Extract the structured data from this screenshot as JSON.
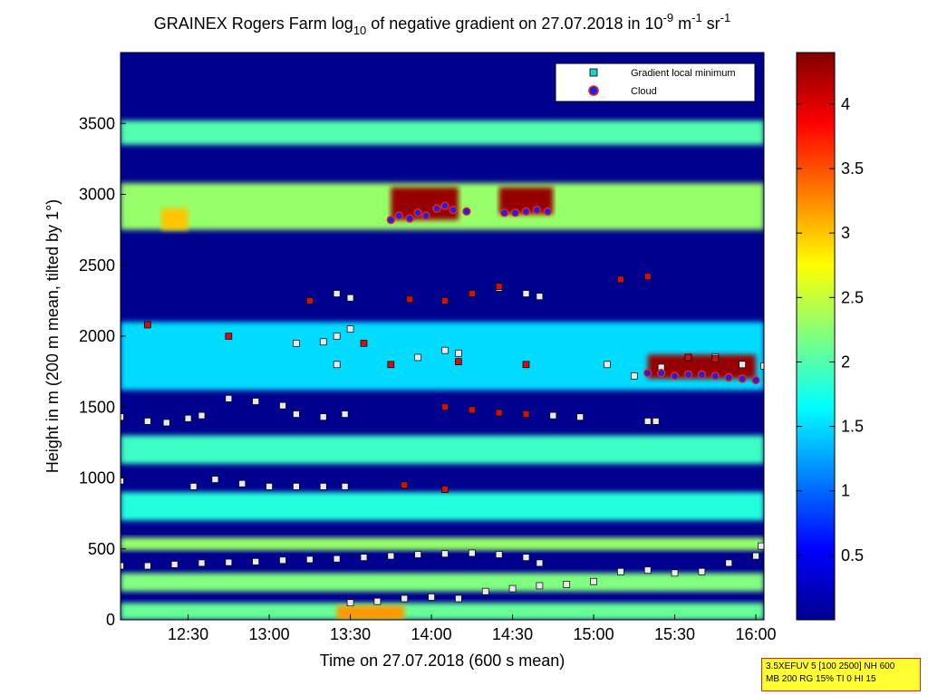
{
  "chart_data": {
    "type": "heatmap",
    "title": {
      "prefix": "GRAINEX Rogers Farm log",
      "prefix_sub": "10",
      "middle": " of negative gradient on 27.07.2018 in 10",
      "exp1": "-9",
      "m_unit": " m",
      "exp2": "-1",
      "sr_unit": " sr",
      "exp3": "-1"
    },
    "xlabel": "Time on 27.07.2018 (600 s mean)",
    "ylabel": "Height in m (200 m mean, tilted by 1°)",
    "xlim": [
      "12:05",
      "16:03"
    ],
    "ylim": [
      0,
      4000
    ],
    "x_ticks": [
      {
        "label": "12:30",
        "minutes": 750
      },
      {
        "label": "13:00",
        "minutes": 780
      },
      {
        "label": "13:30",
        "minutes": 810
      },
      {
        "label": "14:00",
        "minutes": 840
      },
      {
        "label": "14:30",
        "minutes": 870
      },
      {
        "label": "15:00",
        "minutes": 900
      },
      {
        "label": "15:30",
        "minutes": 930
      },
      {
        "label": "16:00",
        "minutes": 960
      }
    ],
    "y_ticks": [
      0,
      500,
      1000,
      1500,
      2000,
      2500,
      3000,
      3500
    ],
    "colorbar": {
      "colormap": "jet",
      "range": [
        0,
        4.4
      ],
      "ticks": [
        "0.5",
        "1",
        "1.5",
        "2",
        "2.5",
        "3",
        "3.5",
        "4"
      ]
    },
    "legend": {
      "position": "top-right",
      "entries": [
        {
          "label": "Gradient local minimum",
          "marker": "square",
          "color": "#22cccc"
        },
        {
          "label": "Cloud",
          "marker": "circle",
          "color": "#2222dd",
          "edge": "#ee2222"
        }
      ]
    },
    "layers": [
      {
        "x": [
          "12:05",
          "16:03"
        ],
        "h": [
          3350,
          3520
        ],
        "v": 2.0
      },
      {
        "x": [
          "12:05",
          "16:03"
        ],
        "h": [
          2750,
          3080
        ],
        "v": 2.3
      },
      {
        "x": [
          "12:05",
          "16:03"
        ],
        "h": [
          1620,
          2100
        ],
        "v": 1.5
      },
      {
        "x": [
          "12:05",
          "16:03"
        ],
        "h": [
          1100,
          1300
        ],
        "v": 1.9
      },
      {
        "x": [
          "12:05",
          "16:03"
        ],
        "h": [
          700,
          900
        ],
        "v": 1.8
      },
      {
        "x": [
          "12:05",
          "16:03"
        ],
        "h": [
          490,
          580
        ],
        "v": 2.3
      },
      {
        "x": [
          "12:05",
          "16:03"
        ],
        "h": [
          200,
          330
        ],
        "v": 2.2
      },
      {
        "x": [
          "12:05",
          "16:03"
        ],
        "h": [
          0,
          120
        ],
        "v": 2.1
      },
      {
        "x": [
          "12:20",
          "12:30"
        ],
        "h": [
          2750,
          2900
        ],
        "v": 3.0
      },
      {
        "x": [
          "13:25",
          "13:50"
        ],
        "h": [
          0,
          100
        ],
        "v": 3.2
      },
      {
        "x": [
          "13:45",
          "14:10"
        ],
        "h": [
          2820,
          3050
        ],
        "v": 4.3
      },
      {
        "x": [
          "14:25",
          "14:45"
        ],
        "h": [
          2860,
          3050
        ],
        "v": 4.3
      },
      {
        "x": [
          "15:20",
          "16:00"
        ],
        "h": [
          1700,
          1870
        ],
        "v": 4.3
      }
    ],
    "series": [
      {
        "name": "Gradient local minimum",
        "marker": "square",
        "points": [
          [
            "12:05",
            380
          ],
          [
            "12:15",
            380
          ],
          [
            "12:25",
            390
          ],
          [
            "12:35",
            400
          ],
          [
            "12:45",
            405
          ],
          [
            "12:55",
            410
          ],
          [
            "13:05",
            420
          ],
          [
            "13:15",
            425
          ],
          [
            "13:25",
            430
          ],
          [
            "13:35",
            440
          ],
          [
            "13:45",
            450
          ],
          [
            "13:55",
            460
          ],
          [
            "14:05",
            465
          ],
          [
            "14:15",
            470
          ],
          [
            "14:25",
            460
          ],
          [
            "14:35",
            440
          ],
          [
            "14:40",
            400
          ],
          [
            "13:30",
            120
          ],
          [
            "13:40",
            130
          ],
          [
            "13:50",
            150
          ],
          [
            "14:00",
            160
          ],
          [
            "14:10",
            150
          ],
          [
            "14:20",
            200
          ],
          [
            "14:30",
            220
          ],
          [
            "14:40",
            240
          ],
          [
            "14:50",
            250
          ],
          [
            "15:00",
            270
          ],
          [
            "15:10",
            340
          ],
          [
            "15:20",
            350
          ],
          [
            "15:30",
            330
          ],
          [
            "15:40",
            340
          ],
          [
            "15:50",
            400
          ],
          [
            "16:00",
            450
          ],
          [
            "16:02",
            520
          ],
          [
            "12:05",
            1430
          ],
          [
            "12:15",
            1400
          ],
          [
            "12:22",
            1390
          ],
          [
            "12:30",
            1420
          ],
          [
            "12:35",
            1440
          ],
          [
            "12:45",
            1560
          ],
          [
            "12:55",
            1540
          ],
          [
            "13:05",
            1510
          ],
          [
            "13:10",
            1450
          ],
          [
            "13:20",
            1430
          ],
          [
            "13:28",
            1450
          ],
          [
            "12:05",
            980
          ],
          [
            "12:32",
            940
          ],
          [
            "12:40",
            990
          ],
          [
            "12:50",
            960
          ],
          [
            "13:00",
            940
          ],
          [
            "13:10",
            940
          ],
          [
            "13:20",
            940
          ],
          [
            "13:28",
            940
          ],
          [
            "13:10",
            1950
          ],
          [
            "13:20",
            1960
          ],
          [
            "13:25",
            2000
          ],
          [
            "13:30",
            2050
          ],
          [
            "13:25",
            1800
          ],
          [
            "13:25",
            2300
          ],
          [
            "13:30",
            2270
          ],
          [
            "14:25",
            2340
          ],
          [
            "14:35",
            2300
          ],
          [
            "14:40",
            2280
          ],
          [
            "14:45",
            1440
          ],
          [
            "14:55",
            1430
          ],
          [
            "15:05",
            1800
          ],
          [
            "15:15",
            1720
          ],
          [
            "15:25",
            1780
          ],
          [
            "15:35",
            1850
          ],
          [
            "15:45",
            1850
          ],
          [
            "15:55",
            1800
          ],
          [
            "16:03",
            1790
          ],
          [
            "15:20",
            1400
          ],
          [
            "15:23",
            1400
          ],
          [
            "14:05",
            1900
          ],
          [
            "14:10",
            1880
          ],
          [
            "13:55",
            1850
          ]
        ]
      },
      {
        "name": "Cloud",
        "marker": "circle",
        "points": [
          [
            "13:45",
            2820
          ],
          [
            "13:48",
            2850
          ],
          [
            "13:52",
            2830
          ],
          [
            "13:55",
            2870
          ],
          [
            "13:58",
            2850
          ],
          [
            "14:02",
            2900
          ],
          [
            "14:05",
            2920
          ],
          [
            "14:08",
            2890
          ],
          [
            "14:13",
            2880
          ],
          [
            "14:27",
            2870
          ],
          [
            "14:31",
            2870
          ],
          [
            "14:35",
            2880
          ],
          [
            "14:39",
            2890
          ],
          [
            "14:43",
            2880
          ],
          [
            "15:20",
            1740
          ],
          [
            "15:25",
            1740
          ],
          [
            "15:30",
            1720
          ],
          [
            "15:35",
            1730
          ],
          [
            "15:40",
            1730
          ],
          [
            "15:45",
            1720
          ],
          [
            "15:50",
            1710
          ],
          [
            "15:55",
            1700
          ],
          [
            "16:00",
            1690
          ]
        ]
      }
    ],
    "extra_points": [
      [
        "12:15",
        2080
      ],
      [
        "12:45",
        2000
      ],
      [
        "13:15",
        2250
      ],
      [
        "13:35",
        1950
      ],
      [
        "13:45",
        1800
      ],
      [
        "13:52",
        2260
      ],
      [
        "14:05",
        2250
      ],
      [
        "14:15",
        2300
      ],
      [
        "14:25",
        2350
      ],
      [
        "14:35",
        1800
      ],
      [
        "14:05",
        1500
      ],
      [
        "14:15",
        1480
      ],
      [
        "14:25",
        1460
      ],
      [
        "14:35",
        1450
      ],
      [
        "13:50",
        950
      ],
      [
        "14:05",
        920
      ],
      [
        "15:10",
        2400
      ],
      [
        "15:20",
        2420
      ],
      [
        "15:35",
        1850
      ],
      [
        "15:45",
        1840
      ],
      [
        "14:10",
        1820
      ]
    ]
  },
  "info_box": {
    "line1": "3.5XEFUV 5 [100 2500] NH 600",
    "line2": "MB 200 RG 15% TI 0 HI 15"
  }
}
